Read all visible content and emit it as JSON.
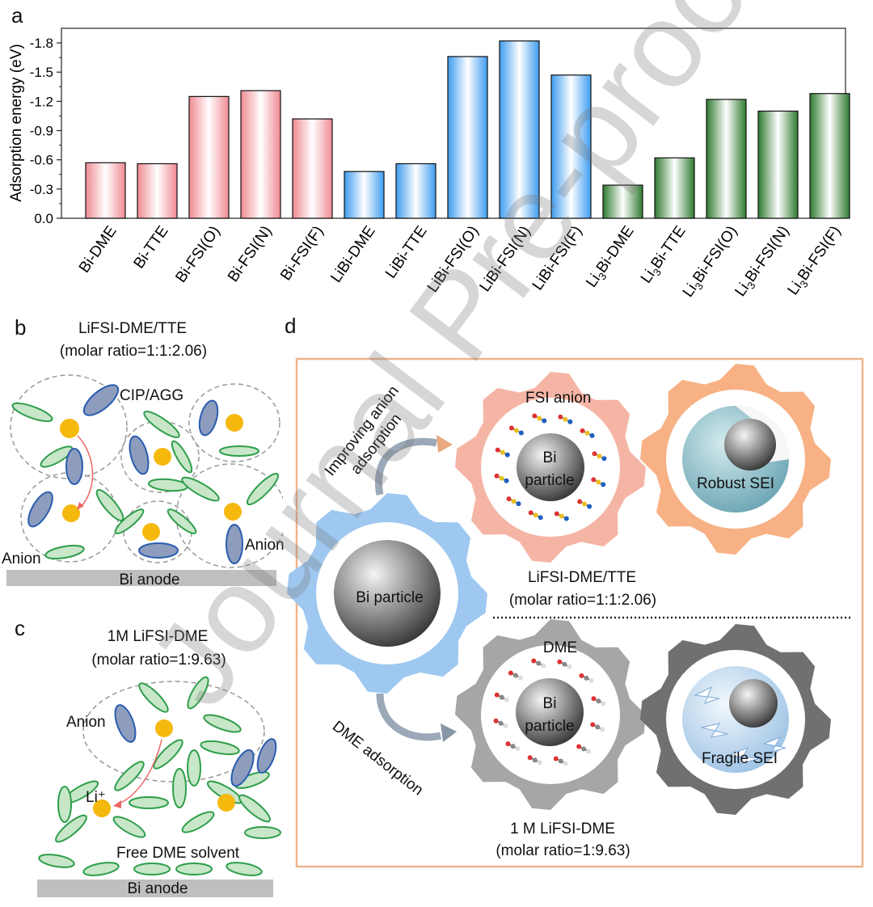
{
  "panels": {
    "a": "a",
    "b": "b",
    "c": "c",
    "d": "d"
  },
  "chart_data": {
    "type": "bar",
    "ylabel": "Adsorption energy (eV)",
    "xlabel": "",
    "ylim": [
      0.0,
      -1.95
    ],
    "yticks": [
      "0.0",
      "-0.3",
      "-0.6",
      "-0.9",
      "-1.2",
      "-1.5",
      "-1.8"
    ],
    "categories": [
      "Bi-DME",
      "Bi-TTE",
      "Bi-FSI(O)",
      "Bi-FSI(N)",
      "Bi-FSI(F)",
      "LiBi-DME",
      "LiBi-TTE",
      "LiBi-FSI(O)",
      "LiBi-FSI(N)",
      "LiBi-FSI(F)",
      "Li3Bi-DME",
      "Li3Bi-TTE",
      "Li3Bi-FSI(O)",
      "Li3Bi-FSI(N)",
      "Li3Bi-FSI(F)"
    ],
    "values": [
      -0.57,
      -0.56,
      -1.25,
      -1.31,
      -1.02,
      -0.48,
      -0.56,
      -1.66,
      -1.82,
      -1.47,
      -0.34,
      -0.62,
      -1.22,
      -1.1,
      -1.28
    ],
    "groups": [
      "Bi",
      "Bi",
      "Bi",
      "Bi",
      "Bi",
      "LiBi",
      "LiBi",
      "LiBi",
      "LiBi",
      "LiBi",
      "Li3Bi",
      "Li3Bi",
      "Li3Bi",
      "Li3Bi",
      "Li3Bi"
    ],
    "group_colors": {
      "Bi": "#e83a45",
      "LiBi": "#2a8ee8",
      "Li3Bi": "#1e6e1e"
    },
    "grid": false
  },
  "panel_b": {
    "title": "LiFSI-DME/TTE",
    "subtitle": "(molar ratio=1:1:2.06)",
    "cip_label": "CIP/AGG",
    "anion_left": "Anion",
    "anion_right": "Anion",
    "anode": "Bi anode"
  },
  "panel_c": {
    "title": "1M LiFSI-DME",
    "subtitle": "(molar ratio=1:9.63)",
    "anion": "Anion",
    "li": "Li⁺",
    "free": "Free DME solvent",
    "anode": "Bi anode"
  },
  "panel_d": {
    "improving_1": "Improving anion",
    "improving_2": "adsorption",
    "fsi_anion": "FSI anion",
    "bi_1": "Bi",
    "particle_1": "particle",
    "robust": "Robust SEI",
    "bi_particle": "Bi particle",
    "top_formula": "LiFSI-DME/TTE",
    "top_ratio": "(molar ratio=1:1:2.06)",
    "dme": "DME",
    "bi_2": "Bi",
    "particle_2": "particle",
    "fragile": "Fragile SEI",
    "dme_adsorption": "DME adsorption",
    "bottom_formula": "1 M LiFSI-DME",
    "bottom_ratio": "(molar ratio=1:9.63)"
  },
  "watermark": "Journal Pre-proof",
  "colors": {
    "frame": "#f0b48c",
    "gear_blue": "#9ec8f0",
    "gear_pink": "#f5b5a5",
    "gear_orange": "#f7b184",
    "gear_grey": "#a6a6a6",
    "gear_dark": "#707070",
    "li_yellow": "#f5b80d",
    "anion_blue": "#8e9dbd",
    "solvent_green": "#c8e6c8"
  }
}
